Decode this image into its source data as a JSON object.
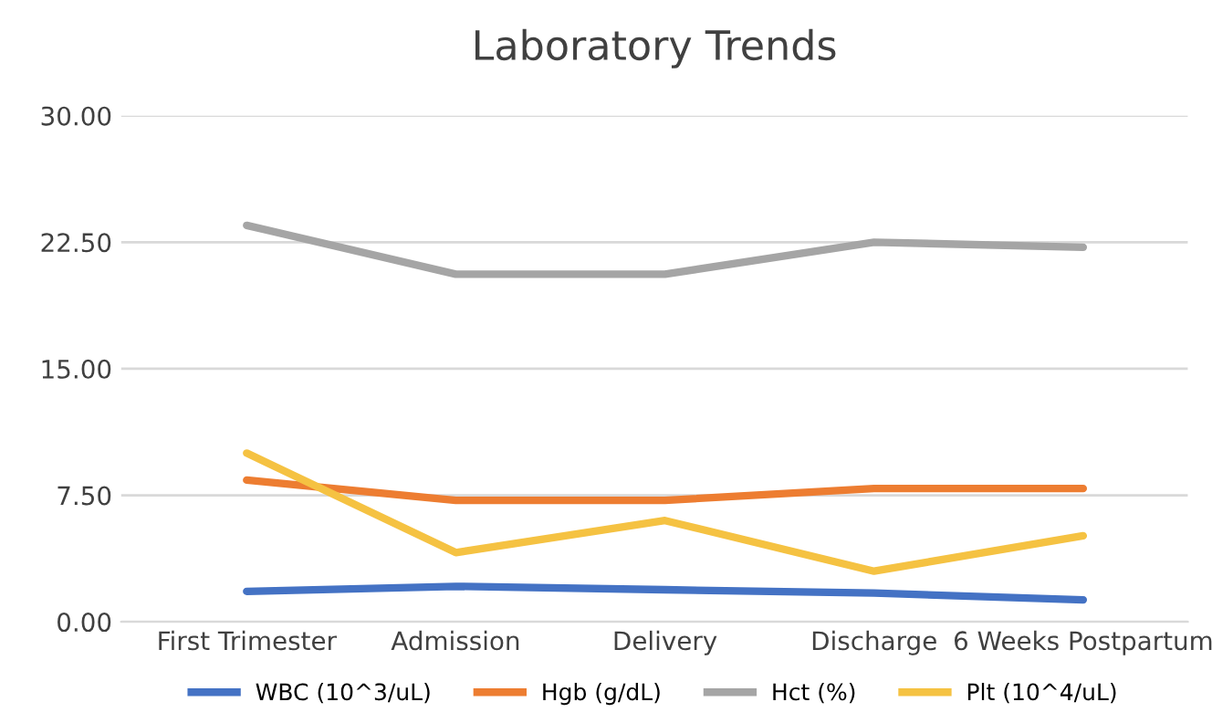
{
  "chart_data": {
    "type": "line",
    "title": "Laboratory Trends",
    "categories": [
      "First Trimester",
      "Admission",
      "Delivery",
      "Discharge",
      "6 Weeks Postpartum"
    ],
    "series": [
      {
        "name": "WBC (10^3/uL)",
        "color": "#4472c4",
        "values": [
          1.8,
          2.1,
          1.9,
          1.7,
          1.3
        ]
      },
      {
        "name": "Hgb (g/dL)",
        "color": "#ed7d31",
        "values": [
          8.4,
          7.2,
          7.2,
          7.9,
          7.9
        ]
      },
      {
        "name": "Hct (%)",
        "color": "#a5a5a5",
        "values": [
          23.5,
          20.6,
          20.6,
          22.5,
          22.2
        ]
      },
      {
        "name": "Plt (10^4/uL)",
        "color": "#f5c242",
        "values": [
          10.0,
          4.1,
          6.0,
          3.0,
          5.1
        ]
      }
    ],
    "ylim": [
      0,
      30
    ],
    "yticks": [
      {
        "value": 0,
        "label": "0.00"
      },
      {
        "value": 7.5,
        "label": "7.50"
      },
      {
        "value": 15,
        "label": "15.00"
      },
      {
        "value": 22.5,
        "label": "22.50"
      },
      {
        "value": 30,
        "label": "30.00"
      }
    ],
    "grid": "y",
    "legend": "bottom",
    "marker": "none",
    "line_style": "solid"
  }
}
